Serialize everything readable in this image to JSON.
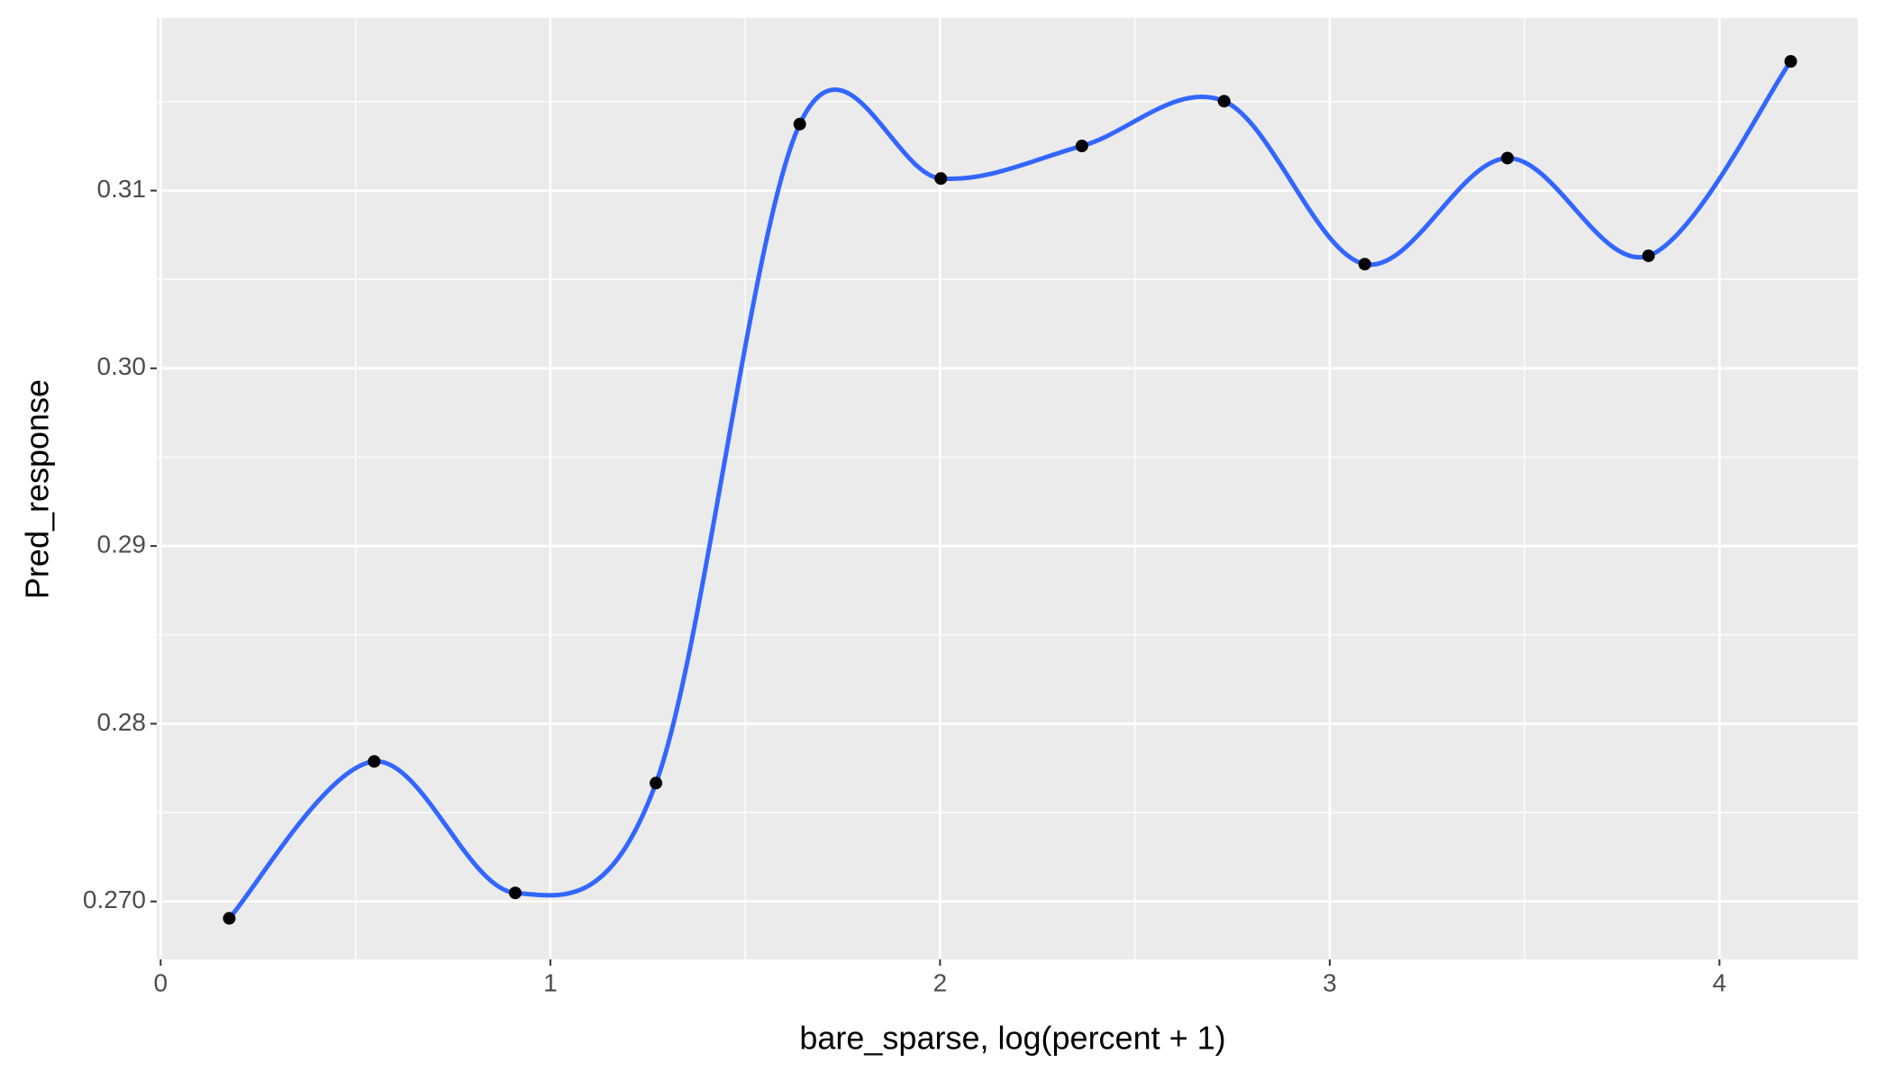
{
  "chart_data": {
    "type": "line",
    "x_label": "bare_sparse, log(percent + 1)",
    "y_label": "Pred_response",
    "x": [
      0.176,
      0.548,
      0.91,
      1.271,
      1.64,
      2.002,
      2.364,
      2.729,
      3.09,
      3.456,
      3.818,
      4.183
    ],
    "values": [
      0.26905,
      0.27788,
      0.27048,
      0.27666,
      0.31374,
      0.31068,
      0.31251,
      0.31503,
      0.30586,
      0.31183,
      0.30633,
      0.31727
    ],
    "line_color": "#3366FF",
    "point_color": "#000000",
    "smooth": true,
    "xlim": [
      -0.01,
      4.355
    ],
    "ylim": [
      0.26674,
      0.31971
    ],
    "xticks": [
      0,
      1,
      2,
      3,
      4
    ],
    "yticks": [
      {
        "value": 0.27,
        "label": "0.270"
      },
      0.28,
      0.29,
      {
        "value": 0.3,
        "label": "0.30"
      },
      0.31
    ],
    "grid": true,
    "minor_grid": true
  }
}
